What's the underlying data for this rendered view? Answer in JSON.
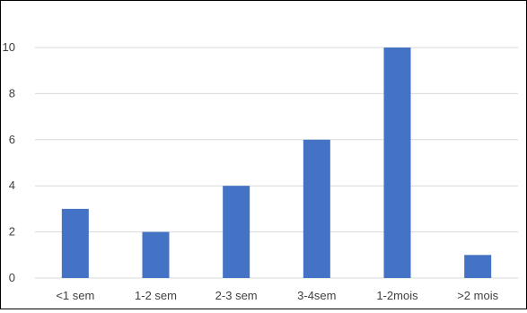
{
  "chart_data": {
    "type": "bar",
    "categories": [
      "<1 sem",
      "1-2 sem",
      "2-3 sem",
      "3-4sem",
      "1-2mois",
      ">2 mois"
    ],
    "values": [
      3,
      2,
      4,
      6,
      10,
      1
    ],
    "title": "",
    "xlabel": "",
    "ylabel": "",
    "ylim": [
      0,
      10
    ],
    "yticks": [
      "0",
      "2",
      "4",
      "6",
      "8",
      "10"
    ],
    "grid": true,
    "legend": "none",
    "bar_color": "#4472C4",
    "grid_color": "#D9D9D9"
  }
}
